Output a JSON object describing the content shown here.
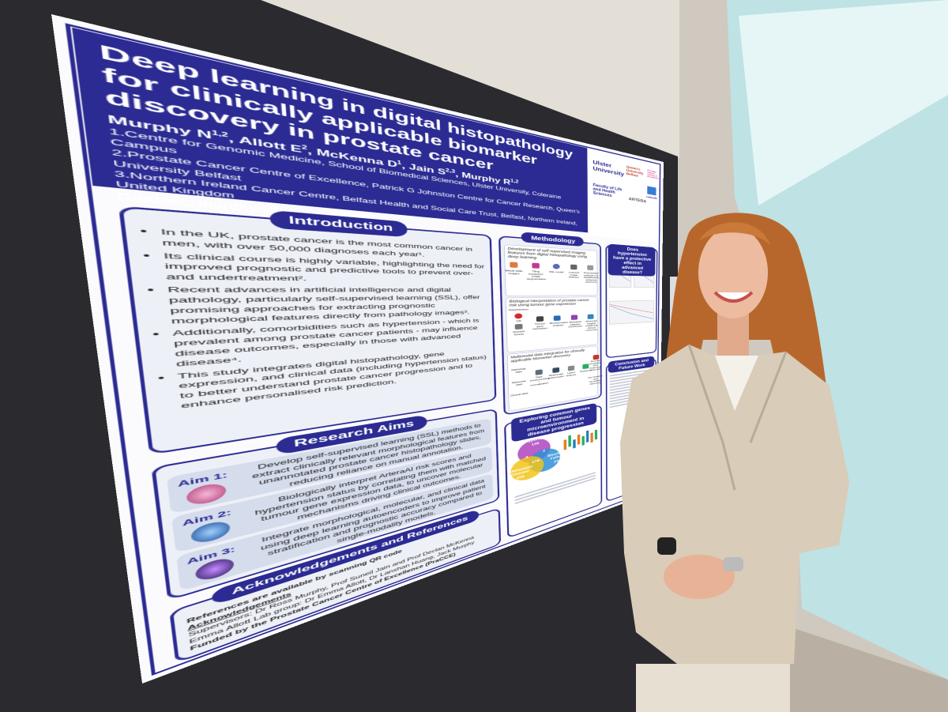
{
  "poster": {
    "title": "Deep learning in digital histopathology for clinically applicable biomarker discovery in prostate cancer",
    "authors": [
      {
        "name": "Murphy N",
        "sup": "1,2"
      },
      {
        "name": "Allott E",
        "sup": "2"
      },
      {
        "name": "McKenna D",
        "sup": "1"
      },
      {
        "name": "Jain S",
        "sup": "2,3"
      },
      {
        "name": "Murphy R",
        "sup": "1,2"
      }
    ],
    "affiliations": [
      "1.Centre for Genomic Medicine, School of Biomedical Sciences, Ulster University, Coleraine Campus",
      "2.Prostate Cancer Centre of Excellence, Patrick G Johnston Centre for Cancer Research, Queen's University Belfast",
      "3.Northern Ireland Cancer Centre, Belfast Health and Social Care Trust, Belfast, Northern Ireland, United Kingdom"
    ],
    "contact": "Contact: murphy-n45@ulster.ac.uk",
    "logos": [
      "Ulster University",
      "Faculty of Life and Health Sciences",
      "Queen's University Belfast",
      "Prostate Cancer Centre of Excellence",
      "ARTERA",
      "LinkedIn"
    ],
    "introduction": {
      "heading": "Introduction",
      "bullets": [
        "In the UK, prostate cancer is the most common cancer in men, with over 50,000 diagnoses each year¹.",
        "Its clinical course is highly variable, highlighting the need for improved prognostic and predictive tools to prevent over- and undertreatment².",
        "Recent advances in artificial intelligence and digital pathology, particularly self-supervised learning (SSL), offer promising approaches for extracting prognostic morphological features directly from pathology images³.",
        "Additionally, comorbidities such as hypertension - which is prevalent among prostate cancer patients - may influence disease outcomes, especially in those with advanced disease⁴.",
        "This study integrates digital histopathology, gene expression, and clinical data (including hypertension status) to better understand prostate cancer progression and to enhance personalised risk prediction."
      ]
    },
    "aims": {
      "heading": "Research Aims",
      "items": [
        {
          "label": "Aim 1:",
          "text": "Develop self-supervised learning (SSL) methods to extract clinically relevant morphological features from unannotated prostate cancer histopathology slides, reducing reliance on manual annotation."
        },
        {
          "label": "Aim 2:",
          "text": "Biologically interpret ArteraAI risk scores and hypertension status by correlating them with matched tumour gene expression data, to uncover molecular mechanisms driving clinical outcomes."
        },
        {
          "label": "Aim 3:",
          "text": "Integrate morphological, molecular, and clinical data using deep learning autoencoders to improve patient stratification and prognostic accuracy compared to single-modality models."
        }
      ]
    },
    "acknowledgements": {
      "heading": "Acknowledgements and References",
      "lines": [
        "References are available by scanning QR code",
        "Acknowledgements",
        "Supervisors: Dr Ross Murphy, Prof Suneil Jain and Prof Declan McKenna",
        "Emma Allott Lab group: Dr Emma Allott, Dr Lanshan Huang, Jack Murphy",
        "Funded by the Prostate Cancer Centre of Excellence (PraCCE)"
      ]
    },
    "methodology": {
      "heading": "Methodology",
      "panels": [
        {
          "heading": "Development of self-supervised imaging features from digital histopathology using deep learning",
          "steps": [
            "Whole-slide images",
            "Tiling extraction/ image augmentation",
            "SSL model",
            "Learned image features",
            "Downstream analysis e.g. classification, subgroup discovery"
          ]
        },
        {
          "heading": "Biological interpretation of prostate cancer risk using tumour gene expression",
          "steps": [
            "Hypertension",
            "OR",
            "ArteraAI Scores",
            "Tumour gene expression",
            "Bioinformatics analysis",
            "Biological pathway enrichment",
            "Molecular insights explaining clinical outcomes"
          ]
        },
        {
          "heading": "Multimodal data integration for clinically applicable biomarker discovery",
          "steps": [
            "Pathology data",
            "Molecular data",
            "Clinical data",
            "Data preprocessing / normalisation",
            "Multimodal autoencoder",
            "Latent features",
            "Clustering",
            "Survival prediction and treatment response",
            "Key features and biomarker discovery"
          ]
        }
      ]
    },
    "genes": {
      "heading": "Exploring common genes and tumour microenvironment in disease progression",
      "venn": [
        {
          "name": "Hypertension",
          "count": 136
        },
        {
          "name": "Biochemical Failure",
          "count": 234
        },
        {
          "name": "Metastatic Disease",
          "count": 208
        },
        {
          "count": 2
        },
        {
          "count": 4
        },
        {
          "count": 178
        }
      ]
    },
    "hypertension": {
      "heading": "Does hypertension have a protective effect in advanced disease?"
    },
    "conclusion": {
      "heading": "Conclusion and Future Work"
    }
  }
}
